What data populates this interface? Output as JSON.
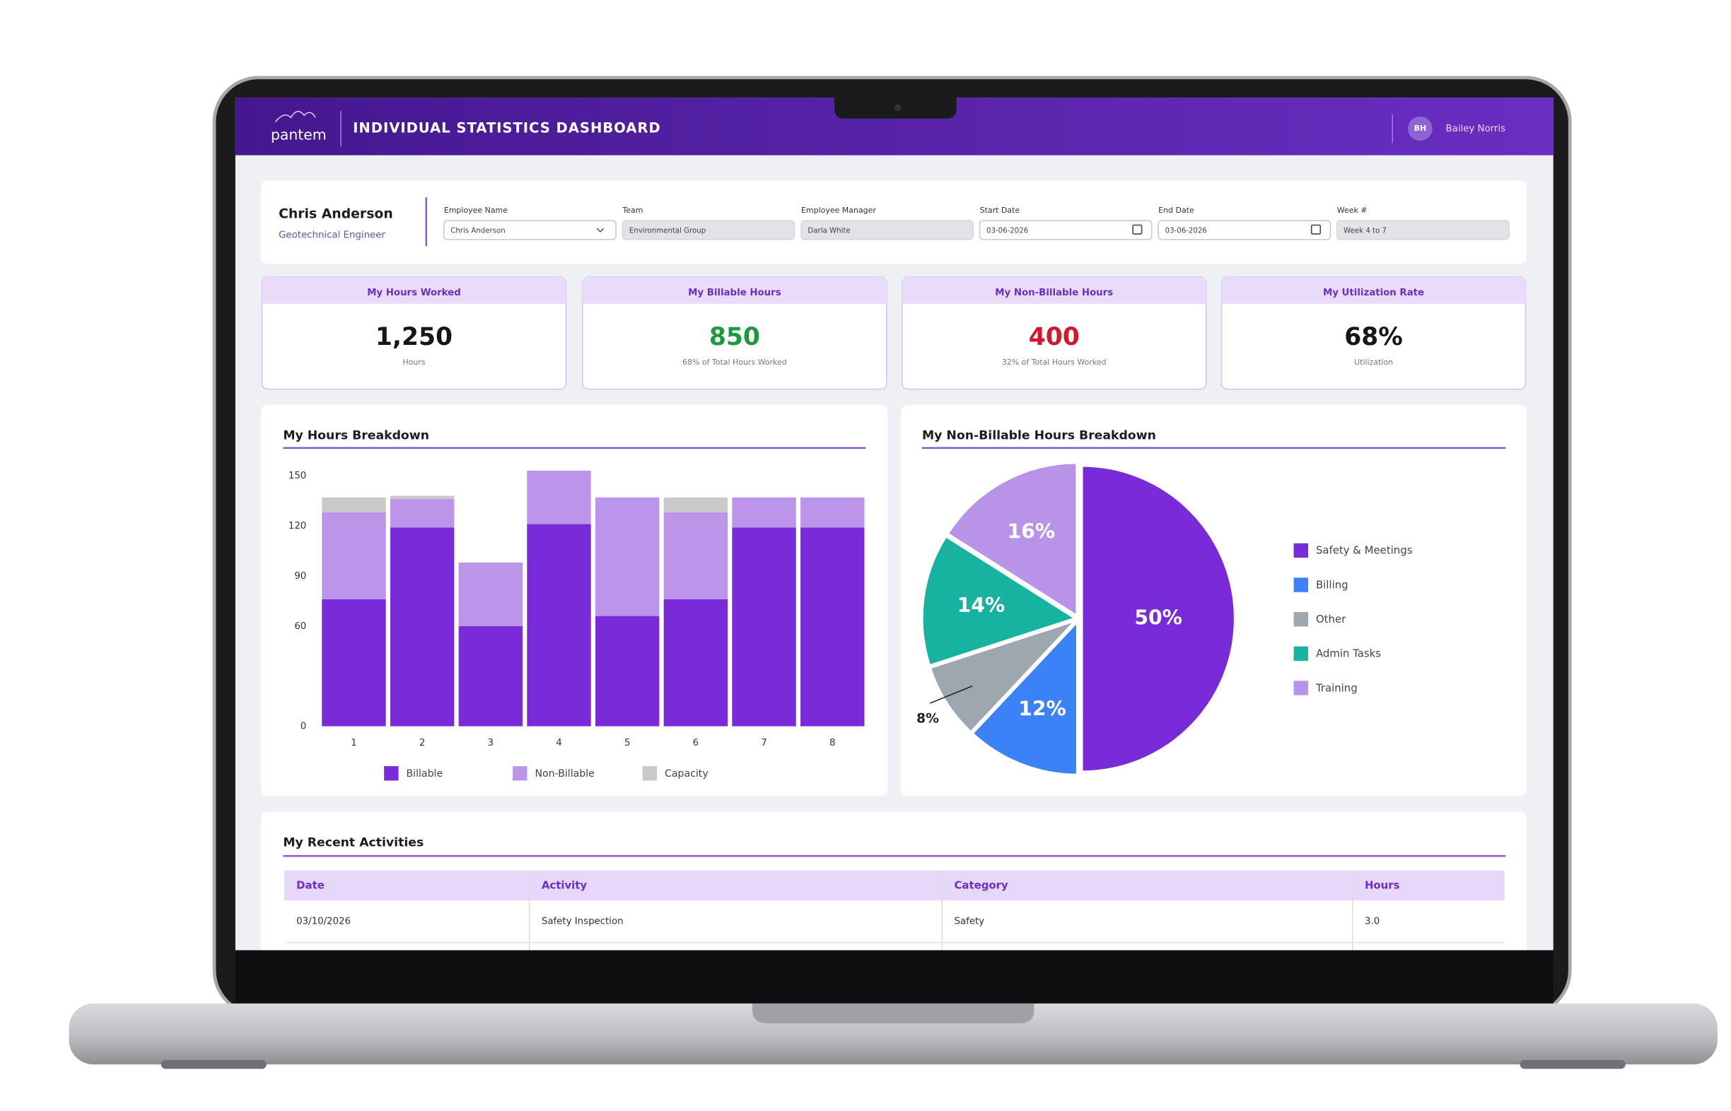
{
  "header": {
    "logo": "pantem",
    "title": "INDIVIDUAL STATISTICS DASHBOARD",
    "user_initials": "BH",
    "user_name": "Bailey Norris"
  },
  "profile": {
    "name": "Chris Anderson",
    "role": "Geotechnical Engineer"
  },
  "filters": [
    {
      "label": "Employee Name",
      "value": "Chris Anderson"
    },
    {
      "label": "Team",
      "value": "Environmental Group"
    },
    {
      "label": "Employee Manager",
      "value": "Darla White"
    },
    {
      "label": "Start Date",
      "value": "03-06-2026"
    },
    {
      "label": "End Date",
      "value": "03-06-2026"
    },
    {
      "label": "Week #",
      "value": "Week 4 to 7"
    }
  ],
  "kpis": [
    {
      "title": "My Hours Worked",
      "value": "1,250",
      "subtitle": "Hours",
      "color": "#161616"
    },
    {
      "title": "My Billable Hours",
      "value": "850",
      "subtitle": "68% of Total Hours Worked",
      "color": "#1d9a3c"
    },
    {
      "title": "My Non-Billable Hours",
      "value": "400",
      "subtitle": "32% of Total Hours Worked",
      "color": "#d3182d"
    },
    {
      "title": "My Utilization Rate",
      "value": "68%",
      "subtitle": "Utilization",
      "color": "#161616"
    }
  ],
  "chart_data": [
    {
      "type": "bar",
      "title": "My Hours Breakdown",
      "stacked": true,
      "categories": [
        "1",
        "2",
        "3",
        "4",
        "5",
        "6",
        "7",
        "8"
      ],
      "series": [
        {
          "name": "Billable",
          "color": "#7a2bd9",
          "values": [
            76,
            119,
            60,
            121,
            66,
            76,
            119,
            119
          ]
        },
        {
          "name": "Non-Billable",
          "color": "#bc95ea",
          "values": [
            52,
            17,
            38,
            32,
            71,
            52,
            18,
            18
          ]
        },
        {
          "name": "Capacity",
          "color": "#c9c9cc",
          "values": [
            9,
            2,
            0,
            0,
            0,
            9,
            0,
            0
          ]
        }
      ],
      "ylim": [
        0,
        150
      ],
      "yticks": [
        0,
        60,
        90,
        120,
        150
      ]
    },
    {
      "type": "pie",
      "title": "My Non-Billable Hours Breakdown",
      "categories": [
        "Safety & Meetings",
        "Billing",
        "Other",
        "Admin Tasks",
        "Training"
      ],
      "values": [
        50,
        12,
        8,
        14,
        16
      ],
      "value_labels": [
        "50%",
        "12%",
        "8%",
        "14%",
        "16%"
      ],
      "colors": [
        "#7a2bd9",
        "#3b82f6",
        "#9ea6ae",
        "#17b3a0",
        "#b993e8"
      ]
    }
  ],
  "table": {
    "title": "My Recent Activities",
    "columns": [
      "Date",
      "Activity",
      "Category",
      "Hours"
    ],
    "rows": [
      [
        "03/10/2026",
        "Safety Inspection",
        "Safety",
        "3.0"
      ]
    ]
  }
}
